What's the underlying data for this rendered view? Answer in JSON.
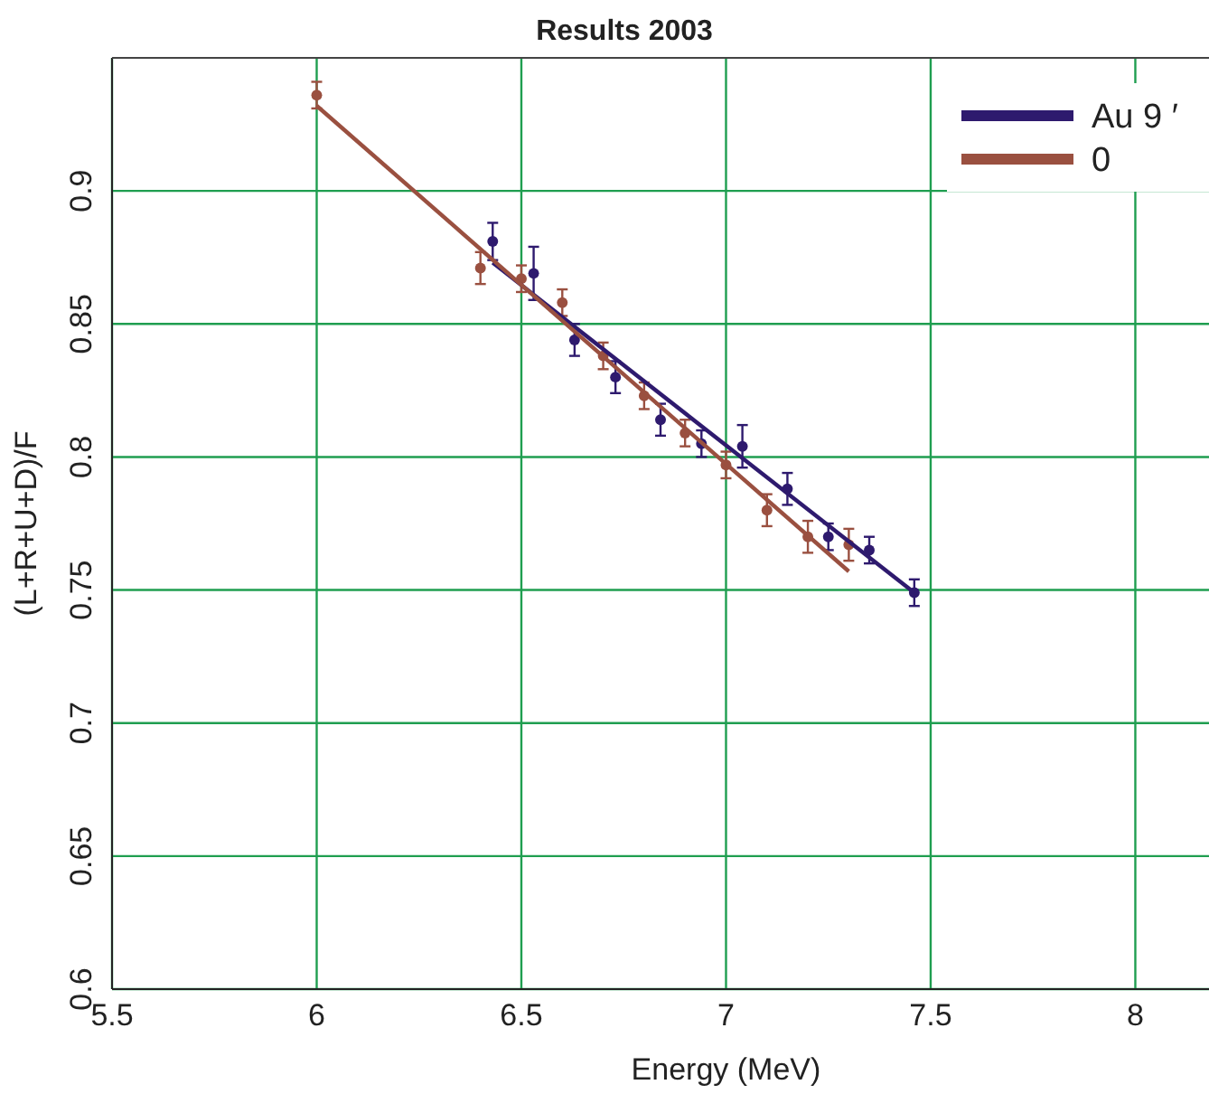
{
  "chart_data": {
    "type": "scatter",
    "title": "Results 2003",
    "xlabel": "Energy (MeV)",
    "ylabel": "(L+R+U+D)/F",
    "xlim": [
      5.5,
      8.18
    ],
    "ylim": [
      0.6,
      0.95
    ],
    "xticks": [
      5.5,
      6,
      6.5,
      7,
      7.5,
      8
    ],
    "yticks": [
      0.6,
      0.65,
      0.7,
      0.75,
      0.8,
      0.85,
      0.9
    ],
    "grid": true,
    "legend": "top right",
    "marker": "circle",
    "series": [
      {
        "color": "#2e1a6e",
        "x": [
          6.43,
          6.53,
          6.63,
          6.73,
          6.84,
          6.94,
          7.04,
          7.15,
          7.25,
          7.35,
          7.46
        ],
        "values": [
          0.881,
          0.869,
          0.844,
          0.83,
          0.814,
          0.805,
          0.804,
          0.788,
          0.77,
          0.765,
          0.749
        ],
        "errors": [
          0.007,
          0.01,
          0.006,
          0.006,
          0.006,
          0.005,
          0.008,
          0.006,
          0.005,
          0.005,
          0.005
        ]
      },
      {
        "color": "#9a5040",
        "x": [
          6.0,
          6.4,
          6.5,
          6.6,
          6.7,
          6.8,
          6.9,
          7.0,
          7.1,
          7.2,
          7.3
        ],
        "values": [
          0.936,
          0.871,
          0.867,
          0.858,
          0.838,
          0.823,
          0.809,
          0.797,
          0.78,
          0.77,
          0.767
        ],
        "errors": [
          0.005,
          0.006,
          0.005,
          0.005,
          0.005,
          0.005,
          0.005,
          0.005,
          0.006,
          0.006,
          0.006
        ]
      },
      {
        "type": "line",
        "marker": "none",
        "name": "Au 9 ′",
        "color": "#2e1a6e",
        "x": [
          6.43,
          7.46
        ],
        "values": [
          0.873,
          0.749
        ]
      },
      {
        "type": "line",
        "marker": "none",
        "name": "0",
        "color": "#9a5040",
        "x": [
          6.0,
          7.3
        ],
        "values": [
          0.932,
          0.757
        ]
      }
    ]
  }
}
